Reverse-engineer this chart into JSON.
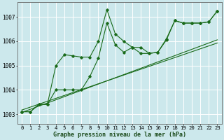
{
  "xlabel": "Graphe pression niveau de la mer (hPa)",
  "bg_color": "#cce8ec",
  "grid_color": "#ffffff",
  "line_color": "#1a6b1a",
  "ylim": [
    1002.6,
    1007.6
  ],
  "yticks": [
    1003,
    1004,
    1005,
    1006,
    1007
  ],
  "xlim": [
    -0.5,
    23.5
  ],
  "series1": [
    1003.1,
    1003.1,
    1003.4,
    1003.4,
    1005.0,
    1005.45,
    1005.4,
    1005.35,
    1005.35,
    1006.0,
    1007.3,
    1006.3,
    1006.0,
    1005.75,
    1005.75,
    1005.5,
    1005.55,
    1006.1,
    1006.85,
    1006.75,
    1006.75,
    1006.75,
    1006.8,
    1007.25
  ],
  "series2": [
    1003.1,
    1003.1,
    1003.4,
    1003.4,
    1004.0,
    1004.0,
    1004.0,
    1004.0,
    1004.55,
    1005.3,
    1006.75,
    1005.85,
    1005.55,
    1005.75,
    1005.5,
    1005.5,
    1005.55,
    1006.05,
    1006.85,
    1006.75,
    1006.75,
    1006.75,
    1006.8,
    1007.25
  ],
  "trend1": [
    1003.07,
    1003.2,
    1003.33,
    1003.46,
    1003.59,
    1003.72,
    1003.85,
    1003.98,
    1004.11,
    1004.24,
    1004.37,
    1004.5,
    1004.63,
    1004.76,
    1004.89,
    1005.02,
    1005.15,
    1005.28,
    1005.41,
    1005.54,
    1005.67,
    1005.8,
    1005.93,
    1006.06
  ],
  "trend2": [
    1003.17,
    1003.29,
    1003.41,
    1003.53,
    1003.65,
    1003.77,
    1003.89,
    1004.01,
    1004.13,
    1004.25,
    1004.37,
    1004.49,
    1004.61,
    1004.73,
    1004.85,
    1004.97,
    1005.09,
    1005.21,
    1005.33,
    1005.45,
    1005.57,
    1005.69,
    1005.81,
    1005.93
  ],
  "xlabel_fontsize": 6.0,
  "tick_fontsize": 5.2
}
